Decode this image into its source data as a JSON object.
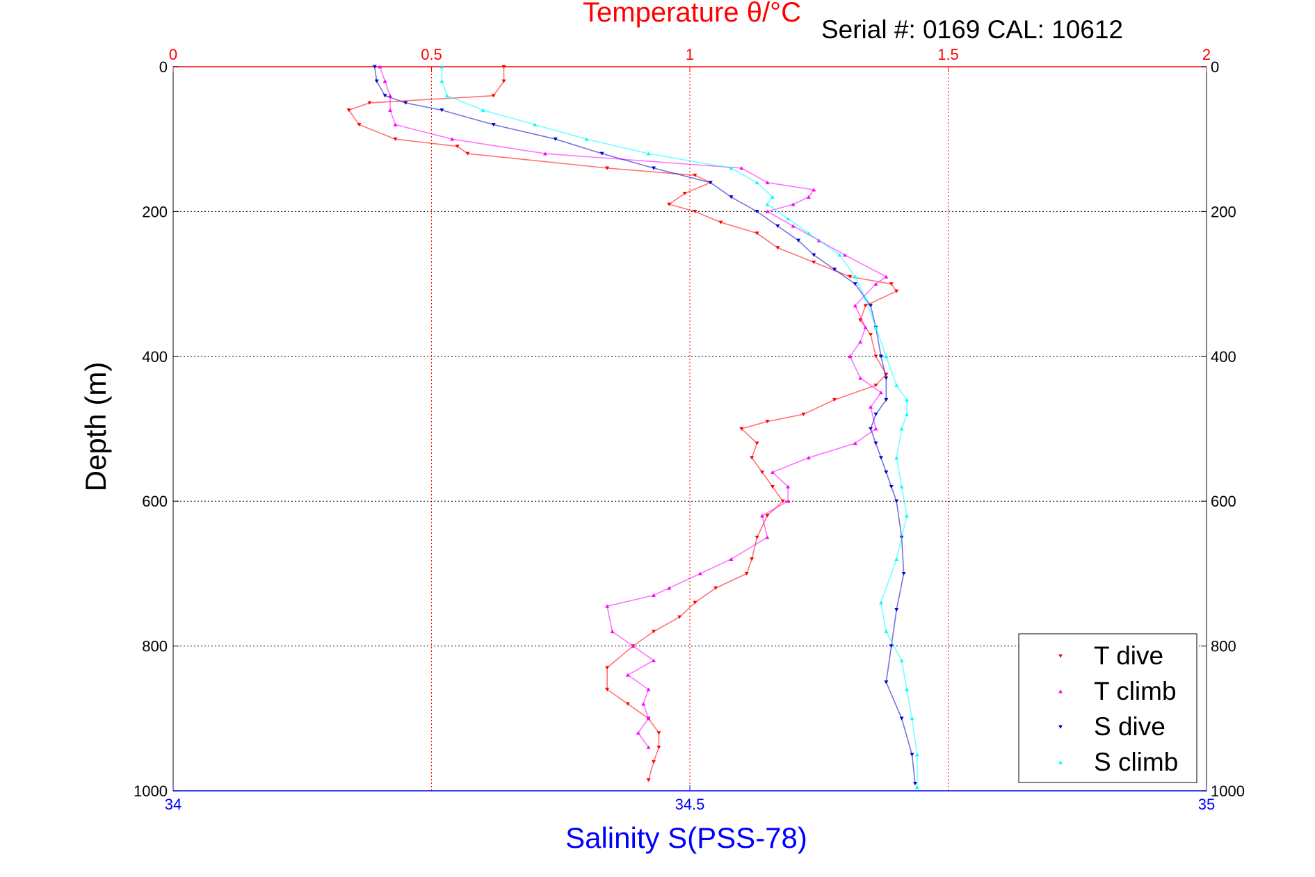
{
  "chart_data": {
    "type": "scatter",
    "title": "Temperature θ/°C",
    "subtitle": "Serial #: 0169 CAL: 10612",
    "ylabel": "Depth (m)",
    "xlabel": "Salinity S(PSS-78)",
    "y_axis": {
      "min": 0,
      "max": 1000,
      "reversed": true,
      "ticks": [
        "0",
        "200",
        "400",
        "600",
        "800",
        "1000"
      ]
    },
    "top_axis": {
      "quantity": "temperature",
      "min": 0,
      "max": 2,
      "ticks": [
        "0",
        "0.5",
        "1",
        "1.5",
        "2"
      ]
    },
    "bottom_axis": {
      "quantity": "salinity",
      "min": 34,
      "max": 35,
      "ticks": [
        "34",
        "34.5",
        "35"
      ]
    },
    "grid": true,
    "legend_position": "bottom-right",
    "colors": {
      "temperature_axis": "#ff0000",
      "salinity_axis": "#0000ff",
      "t_dive": "#ff0000",
      "t_climb": "#ff00ff",
      "s_dive": "#0000cc",
      "s_climb": "#00ffff"
    },
    "series": [
      {
        "name": "T dive",
        "axis": "temperature",
        "marker": "down-triangle",
        "points": [
          [
            0,
            0.64
          ],
          [
            20,
            0.64
          ],
          [
            40,
            0.62
          ],
          [
            50,
            0.38
          ],
          [
            60,
            0.34
          ],
          [
            80,
            0.36
          ],
          [
            100,
            0.43
          ],
          [
            110,
            0.55
          ],
          [
            120,
            0.57
          ],
          [
            140,
            0.84
          ],
          [
            150,
            1.01
          ],
          [
            160,
            1.04
          ],
          [
            175,
            0.99
          ],
          [
            190,
            0.96
          ],
          [
            200,
            1.01
          ],
          [
            215,
            1.06
          ],
          [
            230,
            1.13
          ],
          [
            250,
            1.17
          ],
          [
            270,
            1.24
          ],
          [
            290,
            1.31
          ],
          [
            300,
            1.39
          ],
          [
            310,
            1.4
          ],
          [
            330,
            1.34
          ],
          [
            350,
            1.33
          ],
          [
            370,
            1.35
          ],
          [
            400,
            1.36
          ],
          [
            425,
            1.38
          ],
          [
            440,
            1.36
          ],
          [
            460,
            1.28
          ],
          [
            480,
            1.22
          ],
          [
            490,
            1.15
          ],
          [
            500,
            1.1
          ],
          [
            520,
            1.13
          ],
          [
            540,
            1.12
          ],
          [
            560,
            1.14
          ],
          [
            580,
            1.16
          ],
          [
            600,
            1.18
          ],
          [
            620,
            1.15
          ],
          [
            650,
            1.13
          ],
          [
            680,
            1.12
          ],
          [
            700,
            1.11
          ],
          [
            720,
            1.05
          ],
          [
            740,
            1.01
          ],
          [
            760,
            0.98
          ],
          [
            780,
            0.93
          ],
          [
            800,
            0.89
          ],
          [
            830,
            0.84
          ],
          [
            860,
            0.84
          ],
          [
            880,
            0.88
          ],
          [
            900,
            0.92
          ],
          [
            920,
            0.94
          ],
          [
            940,
            0.94
          ],
          [
            960,
            0.93
          ],
          [
            985,
            0.92
          ]
        ]
      },
      {
        "name": "T climb",
        "axis": "temperature",
        "marker": "up-triangle",
        "points": [
          [
            0,
            0.4
          ],
          [
            20,
            0.41
          ],
          [
            40,
            0.42
          ],
          [
            60,
            0.42
          ],
          [
            80,
            0.43
          ],
          [
            100,
            0.54
          ],
          [
            120,
            0.72
          ],
          [
            140,
            1.1
          ],
          [
            160,
            1.15
          ],
          [
            170,
            1.24
          ],
          [
            180,
            1.23
          ],
          [
            190,
            1.2
          ],
          [
            200,
            1.15
          ],
          [
            220,
            1.2
          ],
          [
            240,
            1.25
          ],
          [
            260,
            1.3
          ],
          [
            290,
            1.38
          ],
          [
            300,
            1.36
          ],
          [
            330,
            1.32
          ],
          [
            360,
            1.34
          ],
          [
            380,
            1.33
          ],
          [
            400,
            1.31
          ],
          [
            430,
            1.33
          ],
          [
            450,
            1.37
          ],
          [
            470,
            1.35
          ],
          [
            500,
            1.36
          ],
          [
            520,
            1.32
          ],
          [
            540,
            1.23
          ],
          [
            560,
            1.16
          ],
          [
            580,
            1.19
          ],
          [
            600,
            1.19
          ],
          [
            620,
            1.14
          ],
          [
            650,
            1.15
          ],
          [
            680,
            1.08
          ],
          [
            700,
            1.02
          ],
          [
            720,
            0.96
          ],
          [
            730,
            0.93
          ],
          [
            745,
            0.84
          ],
          [
            780,
            0.85
          ],
          [
            800,
            0.89
          ],
          [
            820,
            0.93
          ],
          [
            840,
            0.88
          ],
          [
            860,
            0.92
          ],
          [
            880,
            0.91
          ],
          [
            900,
            0.92
          ],
          [
            920,
            0.9
          ],
          [
            940,
            0.92
          ]
        ]
      },
      {
        "name": "S dive",
        "axis": "salinity",
        "marker": "down-triangle",
        "points": [
          [
            0,
            34.195
          ],
          [
            20,
            34.197
          ],
          [
            40,
            34.205
          ],
          [
            50,
            34.225
          ],
          [
            60,
            34.26
          ],
          [
            80,
            34.31
          ],
          [
            100,
            34.37
          ],
          [
            120,
            34.415
          ],
          [
            140,
            34.465
          ],
          [
            160,
            34.52
          ],
          [
            180,
            34.54
          ],
          [
            200,
            34.565
          ],
          [
            220,
            34.585
          ],
          [
            240,
            34.605
          ],
          [
            260,
            34.62
          ],
          [
            280,
            34.64
          ],
          [
            300,
            34.66
          ],
          [
            330,
            34.675
          ],
          [
            360,
            34.68
          ],
          [
            400,
            34.685
          ],
          [
            430,
            34.69
          ],
          [
            460,
            34.69
          ],
          [
            480,
            34.68
          ],
          [
            500,
            34.675
          ],
          [
            520,
            34.68
          ],
          [
            540,
            34.685
          ],
          [
            560,
            34.69
          ],
          [
            580,
            34.695
          ],
          [
            600,
            34.7
          ],
          [
            650,
            34.705
          ],
          [
            700,
            34.707
          ],
          [
            750,
            34.7
          ],
          [
            800,
            34.695
          ],
          [
            850,
            34.69
          ],
          [
            900,
            34.705
          ],
          [
            950,
            34.715
          ],
          [
            990,
            34.718
          ]
        ]
      },
      {
        "name": "S climb",
        "axis": "salinity",
        "marker": "up-triangle",
        "points": [
          [
            0,
            34.26
          ],
          [
            20,
            34.26
          ],
          [
            40,
            34.265
          ],
          [
            60,
            34.3
          ],
          [
            80,
            34.35
          ],
          [
            100,
            34.4
          ],
          [
            120,
            34.46
          ],
          [
            140,
            34.54
          ],
          [
            160,
            34.565
          ],
          [
            180,
            34.58
          ],
          [
            190,
            34.575
          ],
          [
            210,
            34.595
          ],
          [
            230,
            34.615
          ],
          [
            260,
            34.645
          ],
          [
            290,
            34.66
          ],
          [
            320,
            34.67
          ],
          [
            360,
            34.68
          ],
          [
            400,
            34.69
          ],
          [
            440,
            34.7
          ],
          [
            460,
            34.71
          ],
          [
            480,
            34.71
          ],
          [
            500,
            34.705
          ],
          [
            540,
            34.7
          ],
          [
            580,
            34.705
          ],
          [
            620,
            34.71
          ],
          [
            680,
            34.7
          ],
          [
            740,
            34.685
          ],
          [
            780,
            34.69
          ],
          [
            820,
            34.705
          ],
          [
            860,
            34.71
          ],
          [
            900,
            34.715
          ],
          [
            950,
            34.72
          ],
          [
            995,
            34.72
          ]
        ]
      }
    ]
  }
}
